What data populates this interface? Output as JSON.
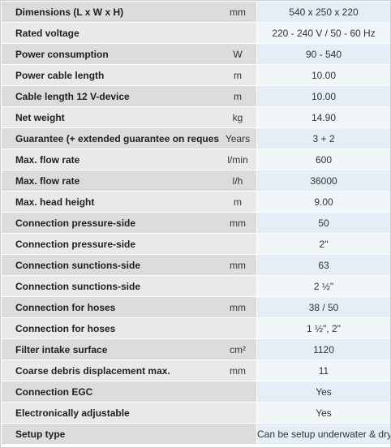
{
  "specs": [
    {
      "label": "Dimensions (L x W x H)",
      "unit": "mm",
      "value": "540 x 250 x 220"
    },
    {
      "label": "Rated voltage",
      "unit": "",
      "value": "220 - 240 V / 50 - 60 Hz"
    },
    {
      "label": "Power consumption",
      "unit": "W",
      "value": "90 - 540"
    },
    {
      "label": "Power cable length",
      "unit": "m",
      "value": "10.00"
    },
    {
      "label": "Cable length 12 V-device",
      "unit": "m",
      "value": "10.00"
    },
    {
      "label": "Net weight",
      "unit": "kg",
      "value": "14.90"
    },
    {
      "label": "Guarantee (+ extended guarantee on request)",
      "unit": "Years",
      "value": "3 + 2"
    },
    {
      "label": "Max. flow rate",
      "unit": "l/min",
      "value": "600"
    },
    {
      "label": "Max. flow rate",
      "unit": "l/h",
      "value": "36000"
    },
    {
      "label": "Max. head height",
      "unit": "m",
      "value": "9.00"
    },
    {
      "label": "Connection pressure-side",
      "unit": "mm",
      "value": "50"
    },
    {
      "label": "Connection pressure-side",
      "unit": "",
      "value": "2\""
    },
    {
      "label": "Connection sunctions-side",
      "unit": "mm",
      "value": "63"
    },
    {
      "label": "Connection sunctions-side",
      "unit": "",
      "value": "2 ½\""
    },
    {
      "label": "Connection for hoses",
      "unit": "mm",
      "value": "38 / 50"
    },
    {
      "label": "Connection for hoses",
      "unit": "",
      "value": "1 ½\", 2\""
    },
    {
      "label": "Filter intake surface",
      "unit": "cm²",
      "value": "1120"
    },
    {
      "label": "Coarse debris displacement max.",
      "unit": "mm",
      "value": "11"
    },
    {
      "label": "Connection EGC",
      "unit": "",
      "value": "Yes"
    },
    {
      "label": "Electronically adjustable",
      "unit": "",
      "value": "Yes"
    },
    {
      "label": "Setup type",
      "unit": "",
      "value": "Can be setup underwater & dry"
    }
  ]
}
